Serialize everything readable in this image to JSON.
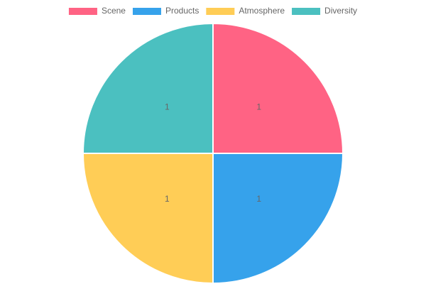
{
  "chart_data": {
    "type": "pie",
    "categories": [
      "Scene",
      "Products",
      "Atmosphere",
      "Diversity"
    ],
    "values": [
      1,
      1,
      1,
      1
    ],
    "colors": [
      "#ff6384",
      "#36a2eb",
      "#ffcd56",
      "#4bc0c0"
    ],
    "legend": "top"
  }
}
